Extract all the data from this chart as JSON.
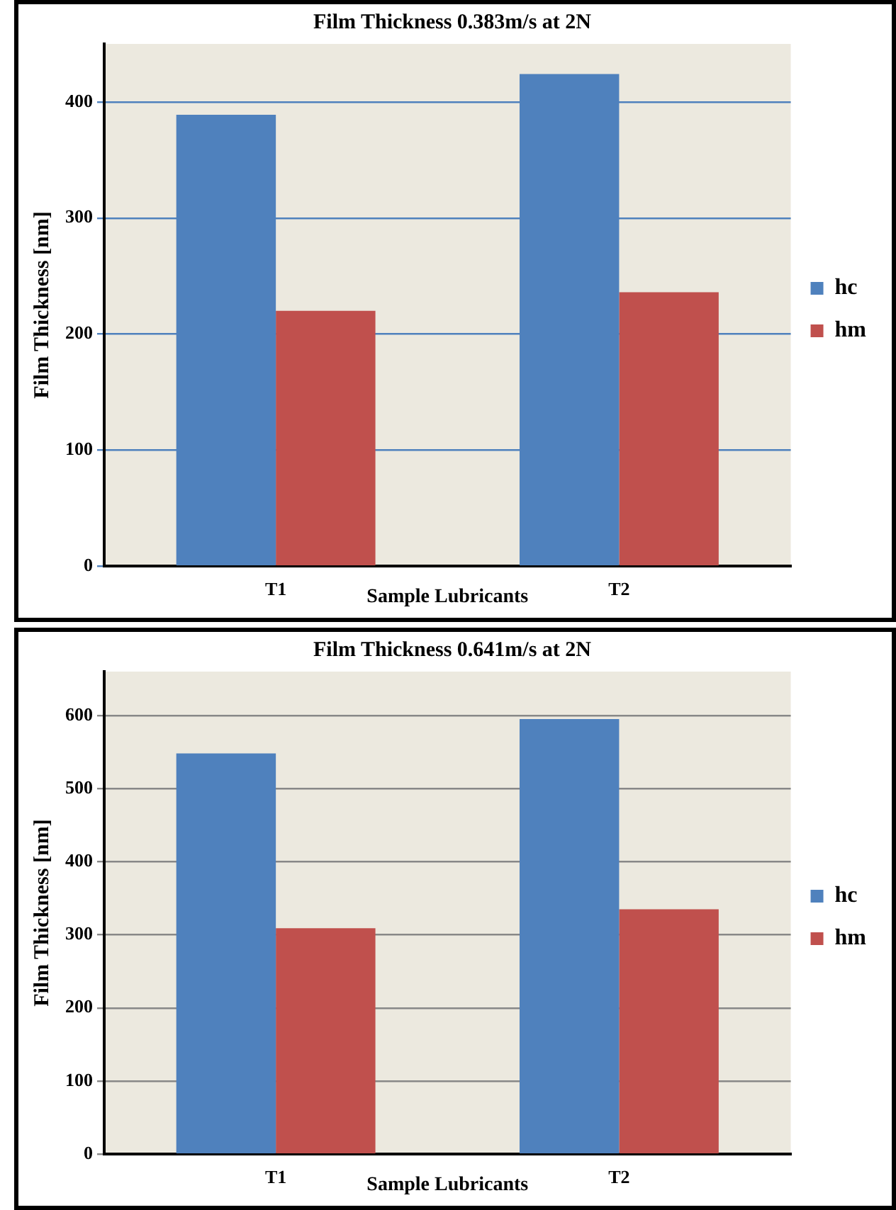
{
  "chart_data": [
    {
      "type": "bar",
      "title": "Film Thickness 0.383m/s at 2N",
      "xlabel": "Sample Lubricants",
      "ylabel": "Film Thickness [nm]",
      "categories": [
        "T1",
        "T2"
      ],
      "series": [
        {
          "name": "hc",
          "color": "#4f81bd",
          "values": [
            389,
            424
          ]
        },
        {
          "name": "hm",
          "color": "#c0504d",
          "values": [
            220,
            236
          ]
        }
      ],
      "ylim": [
        0,
        450
      ],
      "yticks": [
        0,
        100,
        200,
        300,
        400
      ],
      "grid": "y",
      "legend": "right"
    },
    {
      "type": "bar",
      "title": "Film Thickness 0.641m/s at 2N",
      "xlabel": "Sample Lubricants",
      "ylabel": "Film Thickness [nm]",
      "categories": [
        "T1",
        "T2"
      ],
      "series": [
        {
          "name": "hc",
          "color": "#4f81bd",
          "values": [
            548,
            595
          ]
        },
        {
          "name": "hm",
          "color": "#c0504d",
          "values": [
            309,
            335
          ]
        }
      ],
      "ylim": [
        0,
        660
      ],
      "yticks": [
        0,
        100,
        200,
        300,
        400,
        500,
        600
      ],
      "grid": "y",
      "legend": "right"
    }
  ]
}
